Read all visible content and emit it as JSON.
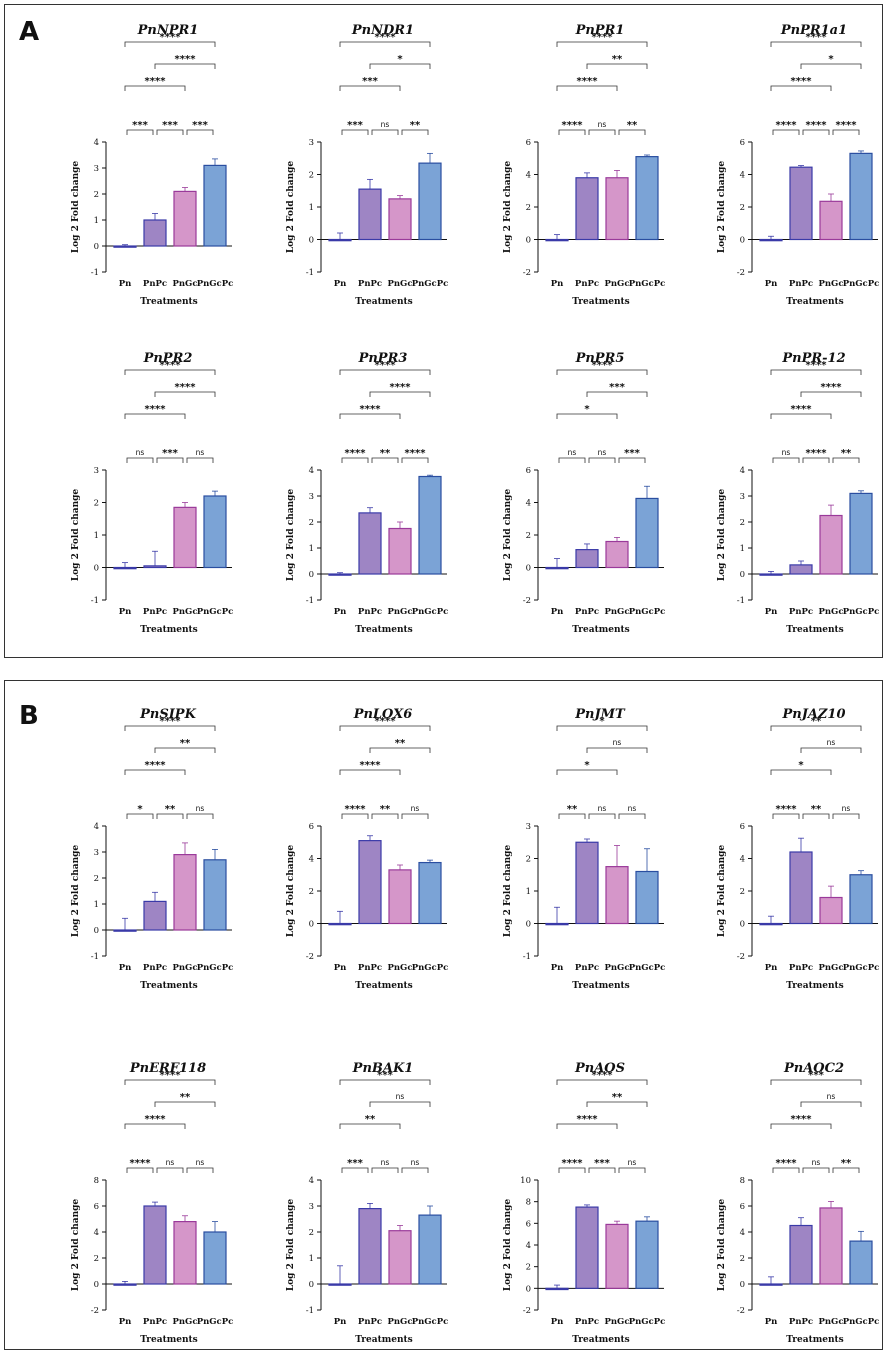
{
  "colors": {
    "Pn": {
      "fill": "#f2f2f8",
      "stroke": "#3a3aa8"
    },
    "PnPc": {
      "fill": "#9e85c4",
      "stroke": "#3a3aa8"
    },
    "PnGc": {
      "fill": "#d596c9",
      "stroke": "#9a3a9a"
    },
    "PnGcPc": {
      "fill": "#7ba3d6",
      "stroke": "#2a4ea0"
    }
  },
  "panels": [
    {
      "label": "A"
    },
    {
      "label": "B"
    }
  ],
  "chart_data": [
    {
      "type": "bar",
      "panel": "A",
      "title": "PnNPR1",
      "categories": [
        "Pn",
        "PnPc",
        "PnGc",
        "PnGcPc"
      ],
      "values": [
        0,
        1,
        2.1,
        3.1
      ],
      "errors": [
        0.05,
        0.25,
        0.15,
        0.25
      ],
      "ylim": [
        -1,
        4
      ],
      "yticks": [
        -1,
        0,
        1,
        2,
        3,
        4
      ],
      "xlabel": "Treatments",
      "ylabel": "Log 2 Fold change",
      "comparisons": [
        {
          "a": 0,
          "b": 1,
          "label": "***"
        },
        {
          "a": 1,
          "b": 2,
          "label": "***"
        },
        {
          "a": 2,
          "b": 3,
          "label": "***"
        },
        {
          "a": 0,
          "b": 2,
          "label": "****"
        },
        {
          "a": 1,
          "b": 3,
          "label": "****"
        },
        {
          "a": 0,
          "b": 3,
          "label": "****"
        }
      ]
    },
    {
      "type": "bar",
      "panel": "A",
      "title": "PnNDR1",
      "categories": [
        "Pn",
        "PnPc",
        "PnGc",
        "PnGcPc"
      ],
      "values": [
        0,
        1.55,
        1.25,
        2.35
      ],
      "errors": [
        0.2,
        0.3,
        0.1,
        0.3
      ],
      "ylim": [
        -1,
        3
      ],
      "yticks": [
        -1,
        0,
        1,
        2,
        3
      ],
      "xlabel": "Treatments",
      "ylabel": "Log 2 Fold change",
      "comparisons": [
        {
          "a": 0,
          "b": 1,
          "label": "***"
        },
        {
          "a": 1,
          "b": 2,
          "label": "ns"
        },
        {
          "a": 2,
          "b": 3,
          "label": "**"
        },
        {
          "a": 0,
          "b": 2,
          "label": "***"
        },
        {
          "a": 1,
          "b": 3,
          "label": "*"
        },
        {
          "a": 0,
          "b": 3,
          "label": "****"
        }
      ]
    },
    {
      "type": "bar",
      "panel": "A",
      "title": "PnPR1",
      "categories": [
        "Pn",
        "PnPc",
        "PnGc",
        "PnGcPc"
      ],
      "values": [
        0,
        3.8,
        3.8,
        5.1
      ],
      "errors": [
        0.3,
        0.3,
        0.45,
        0.1
      ],
      "ylim": [
        -2,
        6
      ],
      "yticks": [
        -2,
        0,
        2,
        4,
        6
      ],
      "xlabel": "Treatments",
      "ylabel": "Log 2 Fold change",
      "comparisons": [
        {
          "a": 0,
          "b": 1,
          "label": "****"
        },
        {
          "a": 1,
          "b": 2,
          "label": "ns"
        },
        {
          "a": 2,
          "b": 3,
          "label": "**"
        },
        {
          "a": 0,
          "b": 2,
          "label": "****"
        },
        {
          "a": 1,
          "b": 3,
          "label": "**"
        },
        {
          "a": 0,
          "b": 3,
          "label": "****"
        }
      ]
    },
    {
      "type": "bar",
      "panel": "A",
      "title": "PnPR1a1",
      "categories": [
        "Pn",
        "PnPc",
        "PnGc",
        "PnGcPc"
      ],
      "values": [
        0,
        4.45,
        2.35,
        5.3
      ],
      "errors": [
        0.2,
        0.1,
        0.45,
        0.15
      ],
      "ylim": [
        -2,
        6
      ],
      "yticks": [
        -2,
        0,
        2,
        4,
        6
      ],
      "xlabel": "Treatments",
      "ylabel": "Log 2 Fold change",
      "comparisons": [
        {
          "a": 0,
          "b": 1,
          "label": "****"
        },
        {
          "a": 2,
          "b": 3,
          "label": "****"
        },
        {
          "a": 1,
          "b": 2,
          "label": "****"
        },
        {
          "a": 0,
          "b": 2,
          "label": "****"
        },
        {
          "a": 1,
          "b": 3,
          "label": "*"
        },
        {
          "a": 0,
          "b": 3,
          "label": "****"
        }
      ]
    },
    {
      "type": "bar",
      "panel": "A",
      "title": "PnPR2",
      "categories": [
        "Pn",
        "PnPc",
        "PnGc",
        "PnGcPc"
      ],
      "values": [
        0,
        0.05,
        1.85,
        2.2
      ],
      "errors": [
        0.15,
        0.45,
        0.15,
        0.15
      ],
      "ylim": [
        -1,
        3
      ],
      "yticks": [
        -1,
        0,
        1,
        2,
        3
      ],
      "xlabel": "Treatments",
      "ylabel": "Log 2 Fold change",
      "comparisons": [
        {
          "a": 0,
          "b": 1,
          "label": "ns"
        },
        {
          "a": 1,
          "b": 2,
          "label": "***"
        },
        {
          "a": 2,
          "b": 3,
          "label": "ns"
        },
        {
          "a": 0,
          "b": 2,
          "label": "****"
        },
        {
          "a": 1,
          "b": 3,
          "label": "****"
        },
        {
          "a": 0,
          "b": 3,
          "label": "****"
        }
      ]
    },
    {
      "type": "bar",
      "panel": "A",
      "title": "PnPR3",
      "categories": [
        "Pn",
        "PnPc",
        "PnGc",
        "PnGcPc"
      ],
      "values": [
        0,
        2.35,
        1.75,
        3.75
      ],
      "errors": [
        0.05,
        0.2,
        0.25,
        0.05
      ],
      "ylim": [
        -1,
        4
      ],
      "yticks": [
        -1,
        0,
        1,
        2,
        3,
        4
      ],
      "xlabel": "Treatments",
      "ylabel": "Log 2 Fold change",
      "comparisons": [
        {
          "a": 0,
          "b": 1,
          "label": "****"
        },
        {
          "a": 1,
          "b": 2,
          "label": "**"
        },
        {
          "a": 2,
          "b": 3,
          "label": "****"
        },
        {
          "a": 0,
          "b": 2,
          "label": "****"
        },
        {
          "a": 1,
          "b": 3,
          "label": "****"
        },
        {
          "a": 0,
          "b": 3,
          "label": "****"
        }
      ]
    },
    {
      "type": "bar",
      "panel": "A",
      "title": "PnPR5",
      "categories": [
        "Pn",
        "PnPc",
        "PnGc",
        "PnGcPc"
      ],
      "values": [
        0,
        1.1,
        1.6,
        4.25
      ],
      "errors": [
        0.55,
        0.35,
        0.25,
        0.75
      ],
      "ylim": [
        -2,
        6
      ],
      "yticks": [
        -2,
        0,
        2,
        4,
        6
      ],
      "xlabel": "Treatments",
      "ylabel": "Log 2 Fold change",
      "comparisons": [
        {
          "a": 0,
          "b": 1,
          "label": "ns"
        },
        {
          "a": 1,
          "b": 2,
          "label": "ns"
        },
        {
          "a": 2,
          "b": 3,
          "label": "***"
        },
        {
          "a": 0,
          "b": 2,
          "label": "*"
        },
        {
          "a": 1,
          "b": 3,
          "label": "***"
        },
        {
          "a": 0,
          "b": 3,
          "label": "****"
        }
      ]
    },
    {
      "type": "bar",
      "panel": "A",
      "title": "PnPR-12",
      "categories": [
        "Pn",
        "PnPc",
        "PnGc",
        "PnGcPc"
      ],
      "values": [
        0,
        0.35,
        2.25,
        3.1
      ],
      "errors": [
        0.1,
        0.15,
        0.4,
        0.1
      ],
      "ylim": [
        -1,
        4
      ],
      "yticks": [
        -1,
        0,
        1,
        2,
        3,
        4
      ],
      "xlabel": "Treatments",
      "ylabel": "Log 2 Fold change",
      "comparisons": [
        {
          "a": 0,
          "b": 1,
          "label": "ns"
        },
        {
          "a": 1,
          "b": 2,
          "label": "****"
        },
        {
          "a": 0,
          "b": 2,
          "label": "****"
        },
        {
          "a": 2,
          "b": 3,
          "label": "**"
        },
        {
          "a": 1,
          "b": 3,
          "label": "****"
        },
        {
          "a": 0,
          "b": 3,
          "label": "****"
        }
      ]
    },
    {
      "type": "bar",
      "panel": "B",
      "title": "PnSIPK",
      "categories": [
        "Pn",
        "PnPc",
        "PnGc",
        "PnGcPc"
      ],
      "values": [
        0,
        1.1,
        2.9,
        2.7
      ],
      "errors": [
        0.45,
        0.35,
        0.45,
        0.4
      ],
      "ylim": [
        -1,
        4
      ],
      "yticks": [
        -1,
        0,
        1,
        2,
        3,
        4
      ],
      "xlabel": "Treatments",
      "ylabel": "Log 2 Fold change",
      "comparisons": [
        {
          "a": 0,
          "b": 1,
          "label": "*"
        },
        {
          "a": 1,
          "b": 2,
          "label": "**"
        },
        {
          "a": 2,
          "b": 3,
          "label": "ns"
        },
        {
          "a": 0,
          "b": 2,
          "label": "****"
        },
        {
          "a": 1,
          "b": 3,
          "label": "**"
        },
        {
          "a": 0,
          "b": 3,
          "label": "****"
        }
      ]
    },
    {
      "type": "bar",
      "panel": "B",
      "title": "PnLOX6",
      "categories": [
        "Pn",
        "PnPc",
        "PnGc",
        "PnGcPc"
      ],
      "values": [
        0,
        5.1,
        3.3,
        3.75
      ],
      "errors": [
        0.75,
        0.3,
        0.3,
        0.15
      ],
      "ylim": [
        -2,
        6
      ],
      "yticks": [
        -2,
        0,
        2,
        4,
        6
      ],
      "xlabel": "Treatments",
      "ylabel": "Log 2 Fold change",
      "comparisons": [
        {
          "a": 0,
          "b": 1,
          "label": "****"
        },
        {
          "a": 2,
          "b": 3,
          "label": "ns"
        },
        {
          "a": 1,
          "b": 2,
          "label": "**"
        },
        {
          "a": 0,
          "b": 2,
          "label": "****"
        },
        {
          "a": 1,
          "b": 3,
          "label": "**"
        },
        {
          "a": 0,
          "b": 3,
          "label": "****"
        }
      ]
    },
    {
      "type": "bar",
      "panel": "B",
      "title": "PnJMT",
      "categories": [
        "Pn",
        "PnPc",
        "PnGc",
        "PnGcPc"
      ],
      "values": [
        0,
        2.5,
        1.75,
        1.6
      ],
      "errors": [
        0.5,
        0.1,
        0.65,
        0.7
      ],
      "ylim": [
        -1,
        3
      ],
      "yticks": [
        -1,
        0,
        1,
        2,
        3
      ],
      "xlabel": "Treatments",
      "ylabel": "Log 2 Fold change",
      "comparisons": [
        {
          "a": 0,
          "b": 1,
          "label": "**"
        },
        {
          "a": 1,
          "b": 2,
          "label": "ns"
        },
        {
          "a": 2,
          "b": 3,
          "label": "ns"
        },
        {
          "a": 0,
          "b": 2,
          "label": "*"
        },
        {
          "a": 1,
          "b": 3,
          "label": "ns"
        },
        {
          "a": 0,
          "b": 3,
          "label": "*"
        }
      ]
    },
    {
      "type": "bar",
      "panel": "B",
      "title": "PnJAZ10",
      "categories": [
        "Pn",
        "PnPc",
        "PnGc",
        "PnGcPc"
      ],
      "values": [
        0,
        4.4,
        1.6,
        3.0
      ],
      "errors": [
        0.45,
        0.85,
        0.7,
        0.25
      ],
      "ylim": [
        -2,
        6
      ],
      "yticks": [
        -2,
        0,
        2,
        4,
        6
      ],
      "xlabel": "Treatments",
      "ylabel": "Log 2 Fold change",
      "comparisons": [
        {
          "a": 0,
          "b": 1,
          "label": "****"
        },
        {
          "a": 2,
          "b": 3,
          "label": "ns"
        },
        {
          "a": 1,
          "b": 2,
          "label": "**"
        },
        {
          "a": 0,
          "b": 2,
          "label": "*"
        },
        {
          "a": 1,
          "b": 3,
          "label": "ns"
        },
        {
          "a": 0,
          "b": 3,
          "label": "**"
        }
      ]
    },
    {
      "type": "bar",
      "panel": "B",
      "title": "PnERF118",
      "categories": [
        "Pn",
        "PnPc",
        "PnGc",
        "PnGcPc"
      ],
      "values": [
        0,
        6.0,
        4.8,
        4.0
      ],
      "errors": [
        0.2,
        0.3,
        0.45,
        0.8
      ],
      "ylim": [
        -2,
        8
      ],
      "yticks": [
        -2,
        0,
        2,
        4,
        6,
        8
      ],
      "xlabel": "Treatments",
      "ylabel": "Log 2 Fold change",
      "comparisons": [
        {
          "a": 0,
          "b": 1,
          "label": "****"
        },
        {
          "a": 1,
          "b": 2,
          "label": "ns"
        },
        {
          "a": 2,
          "b": 3,
          "label": "ns"
        },
        {
          "a": 0,
          "b": 2,
          "label": "****"
        },
        {
          "a": 1,
          "b": 3,
          "label": "**"
        },
        {
          "a": 0,
          "b": 3,
          "label": "****"
        }
      ]
    },
    {
      "type": "bar",
      "panel": "B",
      "title": "PnBAK1",
      "categories": [
        "Pn",
        "PnPc",
        "PnGc",
        "PnGcPc"
      ],
      "values": [
        0,
        2.9,
        2.05,
        2.65
      ],
      "errors": [
        0.7,
        0.2,
        0.2,
        0.35
      ],
      "ylim": [
        -1,
        4
      ],
      "yticks": [
        -1,
        0,
        1,
        2,
        3,
        4
      ],
      "xlabel": "Treatments",
      "ylabel": "Log 2 Fold change",
      "comparisons": [
        {
          "a": 0,
          "b": 1,
          "label": "***"
        },
        {
          "a": 1,
          "b": 2,
          "label": "ns"
        },
        {
          "a": 2,
          "b": 3,
          "label": "ns"
        },
        {
          "a": 0,
          "b": 2,
          "label": "**"
        },
        {
          "a": 1,
          "b": 3,
          "label": "ns"
        },
        {
          "a": 0,
          "b": 3,
          "label": "***"
        }
      ]
    },
    {
      "type": "bar",
      "panel": "B",
      "title": "PnAOS",
      "categories": [
        "Pn",
        "PnPc",
        "PnGc",
        "PnGcPc"
      ],
      "values": [
        0,
        7.5,
        5.9,
        6.2
      ],
      "errors": [
        0.3,
        0.2,
        0.3,
        0.4
      ],
      "ylim": [
        -2,
        10
      ],
      "yticks": [
        -2,
        0,
        2,
        4,
        6,
        8,
        10
      ],
      "xlabel": "Treatments",
      "ylabel": "Log 2 Fold change",
      "comparisons": [
        {
          "a": 0,
          "b": 1,
          "label": "****"
        },
        {
          "a": 2,
          "b": 3,
          "label": "ns"
        },
        {
          "a": 1,
          "b": 2,
          "label": "***"
        },
        {
          "a": 0,
          "b": 2,
          "label": "****"
        },
        {
          "a": 1,
          "b": 3,
          "label": "**"
        },
        {
          "a": 0,
          "b": 3,
          "label": "****"
        }
      ]
    },
    {
      "type": "bar",
      "panel": "B",
      "title": "PnAOC2",
      "categories": [
        "Pn",
        "PnPc",
        "PnGc",
        "PnGcPc"
      ],
      "values": [
        0,
        4.5,
        5.85,
        3.3
      ],
      "errors": [
        0.55,
        0.6,
        0.5,
        0.75
      ],
      "ylim": [
        -2,
        8
      ],
      "yticks": [
        -2,
        0,
        2,
        4,
        6,
        8
      ],
      "xlabel": "Treatments",
      "ylabel": "Log 2 Fold change",
      "comparisons": [
        {
          "a": 0,
          "b": 1,
          "label": "****"
        },
        {
          "a": 1,
          "b": 2,
          "label": "ns"
        },
        {
          "a": 2,
          "b": 3,
          "label": "**"
        },
        {
          "a": 0,
          "b": 2,
          "label": "****"
        },
        {
          "a": 1,
          "b": 3,
          "label": "ns"
        },
        {
          "a": 0,
          "b": 3,
          "label": "***"
        }
      ]
    }
  ]
}
